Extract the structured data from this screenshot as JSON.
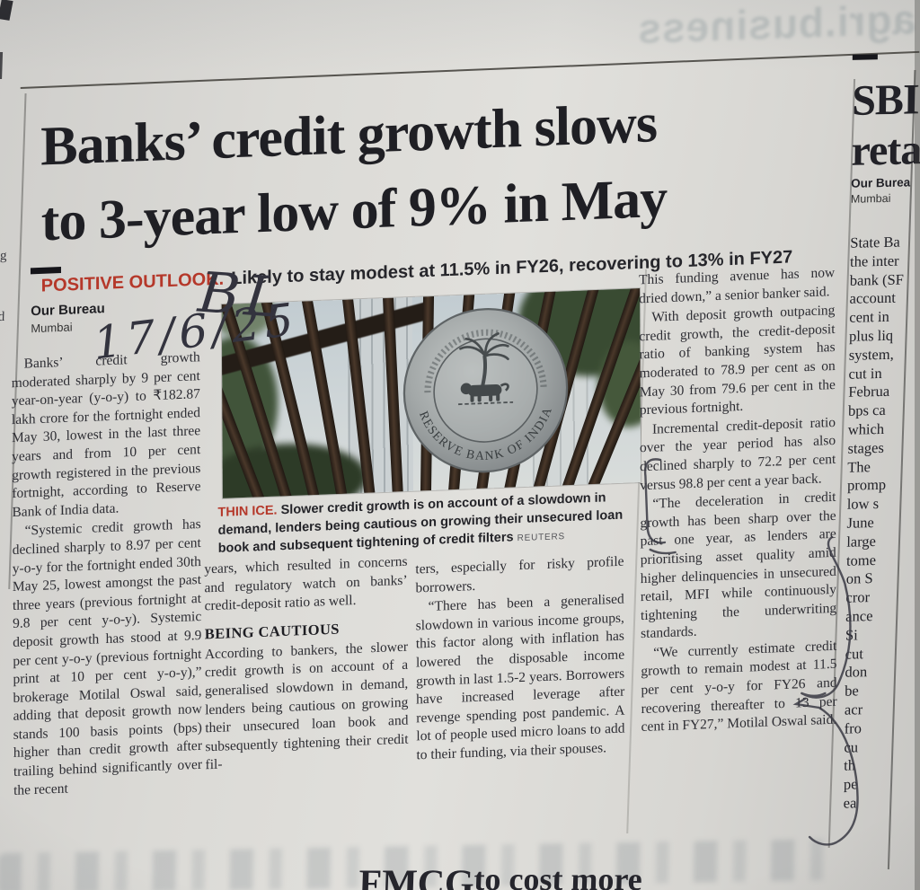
{
  "page": {
    "ghost_top_text": "agri.business",
    "left_edge_fragments": [
      "ng",
      "d",
      "nd"
    ],
    "bottom_fragments": {
      "left": "FMCG",
      "right": "to cost more"
    }
  },
  "colors": {
    "accent_red": "#b5382a",
    "ink": "#26262b",
    "paper": "#d9d8d4"
  },
  "article": {
    "headline_line1": "Banks’ credit growth slows",
    "headline_line2": "to 3-year low of 9% in May",
    "kicker_label": "POSITIVE OUTLOOK.",
    "kicker_text": "Likely to stay modest at 11.5% in FY26, recovering to 13% in FY27",
    "byline": "Our Bureau",
    "location": "Mumbai",
    "handwriting_line1": "BL",
    "handwriting_line2": "17/6/25",
    "col1": {
      "p1": "Banks’ credit growth moderated sharply by 9 per cent year-on-year (y-o-y) to ₹182.87 lakh crore for the fortnight ended May 30, lowest in the last three years and from 10 per cent growth registered in the previous fortnight, according to Reserve Bank of India data.",
      "p2": "“Systemic credit growth has declined sharply to 8.97 per cent y-o-y for the fortnight ended 30th May 25, lowest amongst the past three years (previous fortnight at 9.8 per cent y-o-y). Systemic deposit growth has stood at 9.9 per cent y-o-y (previous fortnight print at 10 per cent y-o-y),” brokerage Motilal Oswal said, adding that deposit growth now stands 100 basis points (bps) higher than credit growth after trailing behind significantly over the recent"
    },
    "col2": {
      "p1": "years, which resulted in concerns and regulatory watch on banks’ credit-deposit ratio as well.",
      "subhead": "BEING CAUTIOUS",
      "p2": "According to bankers, the slower credit growth is on account of a generalised slowdown in demand, lenders being cautious on growing their unsecured loan book and subsequently tightening their credit fil-"
    },
    "col3": {
      "p1": "ters, especially for risky profile borrowers.",
      "p2": "“There has been a generalised slowdown in various income groups, this factor along with inflation has lowered the disposable income growth in last 1.5-2 years. Borrowers have increased leverage after revenge spending post pandemic. A lot of people used micro loans to add to their funding, via their spouses."
    },
    "col4": {
      "p1": "This funding avenue has now dried down,” a senior banker said.",
      "p2": "With deposit growth outpacing credit growth, the credit-deposit ratio of banking system has moderated to 78.9 per cent as on May 30 from 79.6 per cent in the previous fortnight.",
      "p3": "Incremental credit-deposit ratio over the year period has also declined sharply to 72.2 per cent versus 98.8 per cent a year back.",
      "p4": "“The deceleration in credit growth has been sharp over the past one year, as lenders are prioritising asset quality amid higher delinquencies in unsecured retail, MFI while continuously tightening the underwriting standards.",
      "p5": "“We currently estimate credit growth to remain modest at 11.5 per cent y-o-y for FY26 and recovering thereafter to 13 per cent in FY27,” Motilal Oswal said."
    },
    "photo": {
      "seal_text": "RESERVE BANK OF INDIA"
    },
    "caption_label": "THIN ICE.",
    "caption_text": "Slower credit growth is on account of a slowdown in demand, lenders being cautious on growing their unsecured loan book and subsequent tightening of credit filters",
    "caption_credit": "REUTERS"
  },
  "side_article": {
    "headline_line1": "SBI",
    "headline_line2": "reta",
    "byline": "Our Burea",
    "location": "Mumbai",
    "fragments": [
      "State Ba",
      "the inter",
      "bank (SF",
      "account",
      "cent in",
      "plus liq",
      "system,",
      "cut in",
      "Februa",
      "bps ca",
      "which",
      "stages",
      "The",
      "promp",
      "low s",
      "June",
      "large",
      "tome",
      "on S",
      "cror",
      "ance",
      "Si",
      "cut",
      "don",
      "be",
      "acr",
      "fro",
      "cu",
      "th",
      "pe",
      "ea"
    ]
  }
}
